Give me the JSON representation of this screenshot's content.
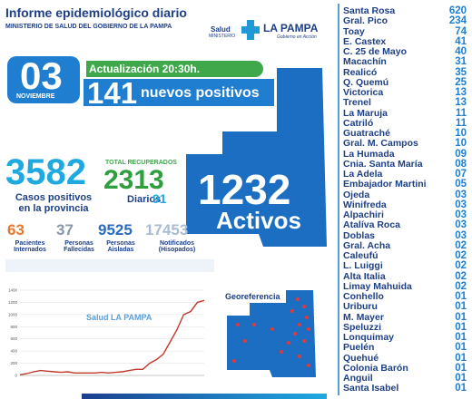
{
  "header": {
    "title": "Informe epidemiológico diario",
    "subtitle": "MINISTERIO DE SALUD DEL GOBIERNO DE LA PAMPA",
    "logo_salud": "Salud",
    "logo_ministerio": "MINISTERIO",
    "logo_province": "LA PAMPA",
    "logo_tagline": "Gobierno en Acción"
  },
  "date": {
    "day": "03",
    "month": "NOVIEMBRE"
  },
  "update": "Actualización 20:30h.",
  "new_positives": {
    "number": "141",
    "label": "nuevos positivos"
  },
  "cases": {
    "number": "3582",
    "label": "Casos positivos en la provincia"
  },
  "recovered": {
    "label": "TOTAL RECUPERADOS",
    "number": "2313",
    "daily_label": "Diarios",
    "daily": "91"
  },
  "active": {
    "number": "1232",
    "label": "Activos"
  },
  "stats": [
    {
      "number": "63",
      "label": "Pacientes Internados"
    },
    {
      "number": "37",
      "label": "Personas Fallecidas"
    },
    {
      "number": "9525",
      "label": "Personas Aisladas"
    },
    {
      "number": "17453",
      "label": "Notificados (Hisopados)"
    }
  ],
  "map_label": "Georeferencia",
  "localities": [
    [
      "Santa Rosa",
      "620"
    ],
    [
      "Gral. Pico",
      "234"
    ],
    [
      "Toay",
      "74"
    ],
    [
      "E. Castex",
      "41"
    ],
    [
      "C. 25 de Mayo",
      "40"
    ],
    [
      "Macachín",
      "31"
    ],
    [
      "Realicó",
      "35"
    ],
    [
      "Q. Quemú",
      "25"
    ],
    [
      "Victorica",
      "13"
    ],
    [
      "Trenel",
      "13"
    ],
    [
      "La Maruja",
      "11"
    ],
    [
      "Catriló",
      "11"
    ],
    [
      "Guatraché",
      "10"
    ],
    [
      "Gral. M. Campos",
      "10"
    ],
    [
      "La Humada",
      "09"
    ],
    [
      "Cnia. Santa María",
      "08"
    ],
    [
      "La Adela",
      "07"
    ],
    [
      "Embajador Martini",
      "05"
    ],
    [
      "Ojeda",
      "03"
    ],
    [
      "Winifreda",
      "03"
    ],
    [
      "Alpachiri",
      "03"
    ],
    [
      "Atalíva Roca",
      "03"
    ],
    [
      "Doblas",
      "03"
    ],
    [
      "Gral. Acha",
      "02"
    ],
    [
      "Caleufú",
      "02"
    ],
    [
      "L. Luiggi",
      "02"
    ],
    [
      "Alta Italia",
      "02"
    ],
    [
      "Limay Mahuida",
      "02"
    ],
    [
      "Conhello",
      "01"
    ],
    [
      "Uriburu",
      "01"
    ],
    [
      "M. Mayer",
      "01"
    ],
    [
      "Speluzzi",
      "01"
    ],
    [
      "Lonquimay",
      "01"
    ],
    [
      "Puelén",
      "01"
    ],
    [
      "Quehué",
      "01"
    ],
    [
      "Colonia Barón",
      "01"
    ],
    [
      "Anguil",
      "01"
    ],
    [
      "Santa Isabel",
      "01"
    ]
  ],
  "chart_data": {
    "type": "line",
    "color": "#c0392b",
    "values": [
      10,
      30,
      60,
      80,
      70,
      60,
      50,
      60,
      40,
      40,
      40,
      40,
      50,
      40,
      50,
      60,
      80,
      100,
      100,
      200,
      260,
      350,
      550,
      750,
      1000,
      1050,
      1200,
      1232
    ],
    "ylim": [
      0,
      1400
    ],
    "yticks": [
      0,
      200,
      400,
      600,
      800,
      1000,
      1200,
      1400
    ],
    "grid": true
  }
}
